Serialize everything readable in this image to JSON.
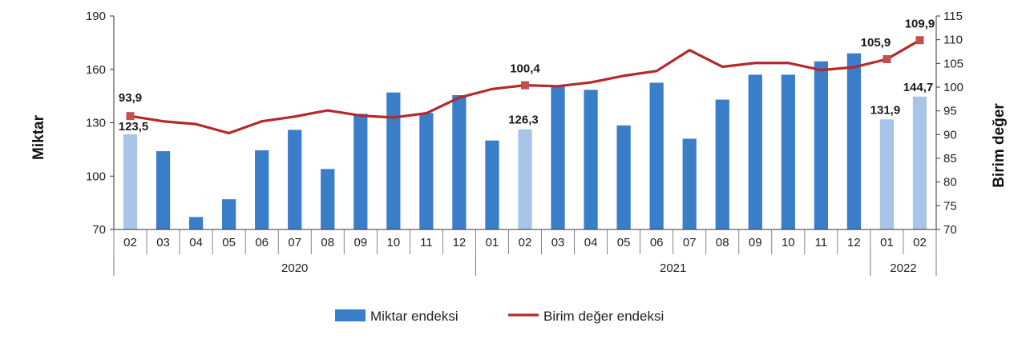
{
  "chart_data": {
    "type": "bar+line",
    "ylabel_left": "Miktar",
    "ylabel_right": "Birim değer",
    "ylim_left": [
      70,
      190
    ],
    "yticks_left": [
      70,
      100,
      130,
      160,
      190
    ],
    "ylim_right": [
      70,
      115
    ],
    "yticks_right": [
      70,
      75,
      80,
      85,
      90,
      95,
      100,
      105,
      110,
      115
    ],
    "categories": [
      "02",
      "03",
      "04",
      "05",
      "06",
      "07",
      "08",
      "09",
      "10",
      "11",
      "12",
      "01",
      "02",
      "03",
      "04",
      "05",
      "06",
      "07",
      "08",
      "09",
      "10",
      "11",
      "12",
      "01",
      "02"
    ],
    "years": [
      {
        "label": "2020",
        "count": 11
      },
      {
        "label": "2021",
        "count": 12
      },
      {
        "label": "2022",
        "count": 2
      }
    ],
    "series": [
      {
        "name": "Miktar endeksi",
        "type": "bar",
        "axis": "left",
        "color": "#3a7dc9",
        "highlight_color": "#a8c4e6",
        "values": [
          123.5,
          114,
          77,
          87,
          114.5,
          126,
          104,
          135,
          147,
          135.5,
          145.5,
          120,
          126.3,
          151,
          148.5,
          128.5,
          152.5,
          121,
          143,
          157,
          157,
          164.5,
          169,
          131.9,
          144.7
        ],
        "highlighted": [
          0,
          12,
          23,
          24
        ]
      },
      {
        "name": "Birim değer endeksi",
        "type": "line",
        "axis": "right",
        "color": "#b42a2a",
        "marker_color": "#c0504d",
        "values": [
          93.9,
          92.8,
          92.2,
          90.3,
          92.8,
          93.8,
          95.1,
          94.0,
          93.6,
          94.5,
          97.8,
          99.6,
          100.4,
          100.2,
          101.0,
          102.4,
          103.4,
          107.8,
          104.3,
          105.1,
          105.1,
          103.6,
          104.2,
          105.9,
          109.9
        ],
        "markers": [
          0,
          12,
          23,
          24
        ]
      }
    ],
    "data_labels": [
      {
        "series": 0,
        "index": 0,
        "text": "123,5"
      },
      {
        "series": 0,
        "index": 12,
        "text": "126,3"
      },
      {
        "series": 0,
        "index": 23,
        "text": "131,9"
      },
      {
        "series": 0,
        "index": 24,
        "text": "144,7"
      },
      {
        "series": 1,
        "index": 0,
        "text": "93,9"
      },
      {
        "series": 1,
        "index": 12,
        "text": "100,4"
      },
      {
        "series": 1,
        "index": 23,
        "text": "105,9"
      },
      {
        "series": 1,
        "index": 24,
        "text": "109,9"
      }
    ],
    "legend": {
      "position": "bottom"
    }
  }
}
